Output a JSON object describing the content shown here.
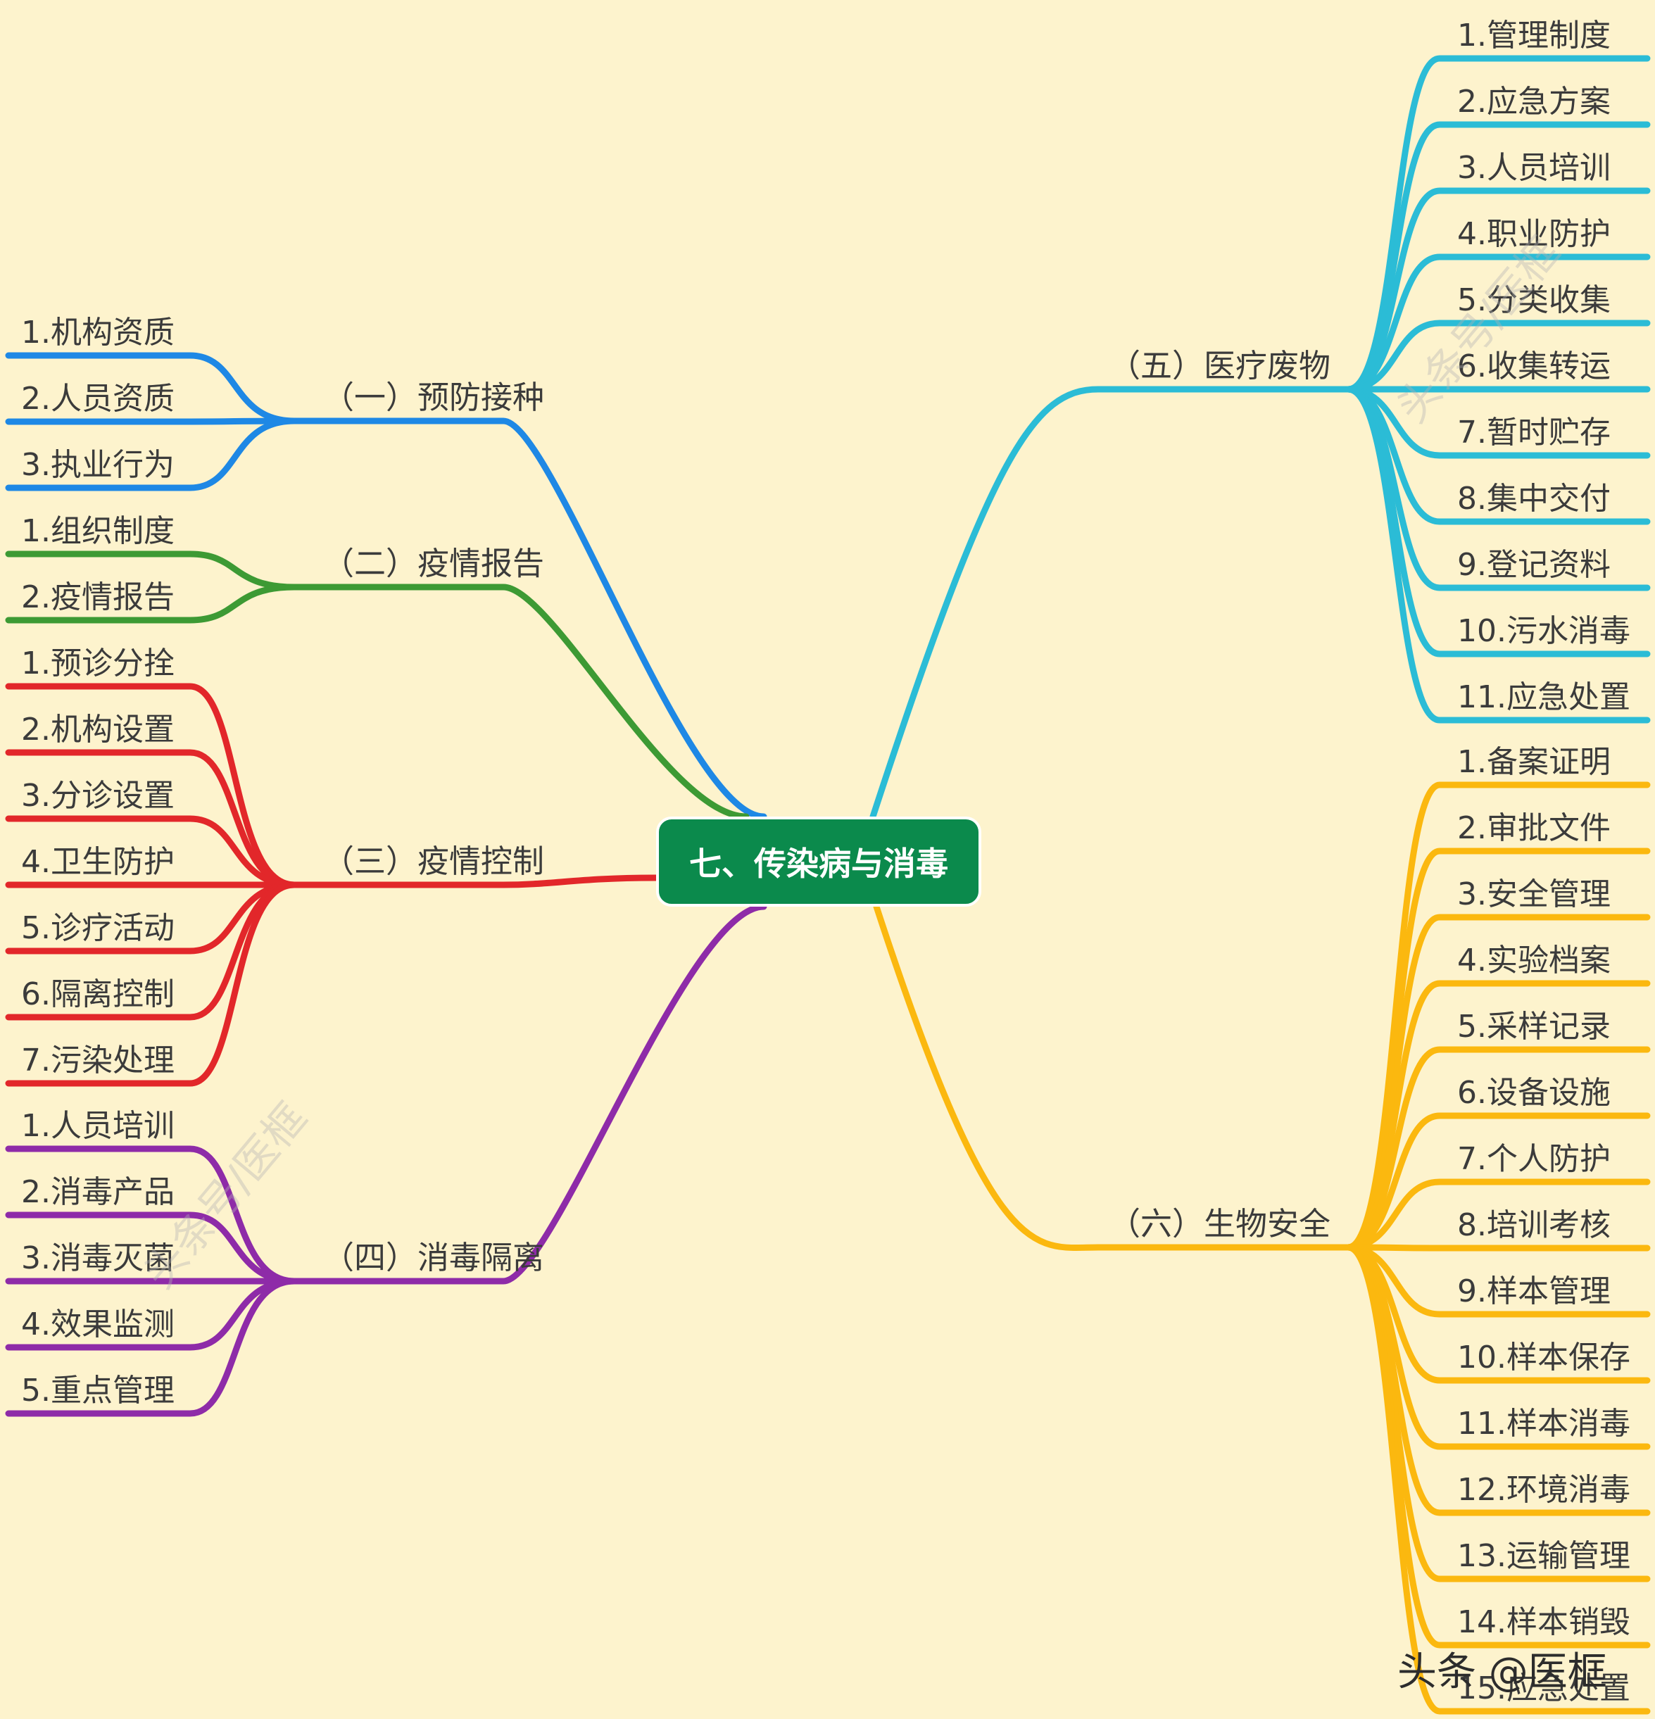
{
  "colors": {
    "background": "#fdf3cd",
    "root": "#0b8a4c",
    "branch_1": "#1e88e5",
    "branch_2": "#3d9a34",
    "branch_3": "#e2272a",
    "branch_4": "#8e2ba8",
    "branch_5": "#2bbcd6",
    "branch_6": "#fbb80f"
  },
  "root": {
    "label": "七、传染病与消毒"
  },
  "branches": [
    {
      "label": "（一）预防接种",
      "items": [
        "1.机构资质",
        "2.人员资质",
        "3.执业行为"
      ]
    },
    {
      "label": "（二）疫情报告",
      "items": [
        "1.组织制度",
        "2.疫情报告"
      ]
    },
    {
      "label": "（三）疫情控制",
      "items": [
        "1.预诊分拴",
        "2.机构设置",
        "3.分诊设置",
        "4.卫生防护",
        "5.诊疗活动",
        "6.隔离控制",
        "7.污染处理"
      ]
    },
    {
      "label": "（四）消毒隔离",
      "items": [
        "1.人员培训",
        "2.消毒产品",
        "3.消毒灭菌",
        "4.效果监测",
        "5.重点管理"
      ]
    },
    {
      "label": "（五）医疗废物",
      "items": [
        "1.管理制度",
        "2.应急方案",
        "3.人员培训",
        "4.职业防护",
        "5.分类收集",
        "6.收集转运",
        "7.暂时贮存",
        "8.集中交付",
        "9.登记资料",
        "10.污水消毒",
        "11.应急处置"
      ]
    },
    {
      "label": "（六）生物安全",
      "items": [
        "1.备案证明",
        "2.审批文件",
        "3.安全管理",
        "4.实验档案",
        "5.采样记录",
        "6.设备设施",
        "7.个人防护",
        "8.培训考核",
        "9.样本管理",
        "10.样本保存",
        "11.样本消毒",
        "12.环境消毒",
        "13.运输管理",
        "14.样本销毁",
        "15.应急处置"
      ]
    }
  ],
  "watermark": {
    "text": "头条号/医框"
  },
  "credit": {
    "text": "头条 @医框"
  }
}
